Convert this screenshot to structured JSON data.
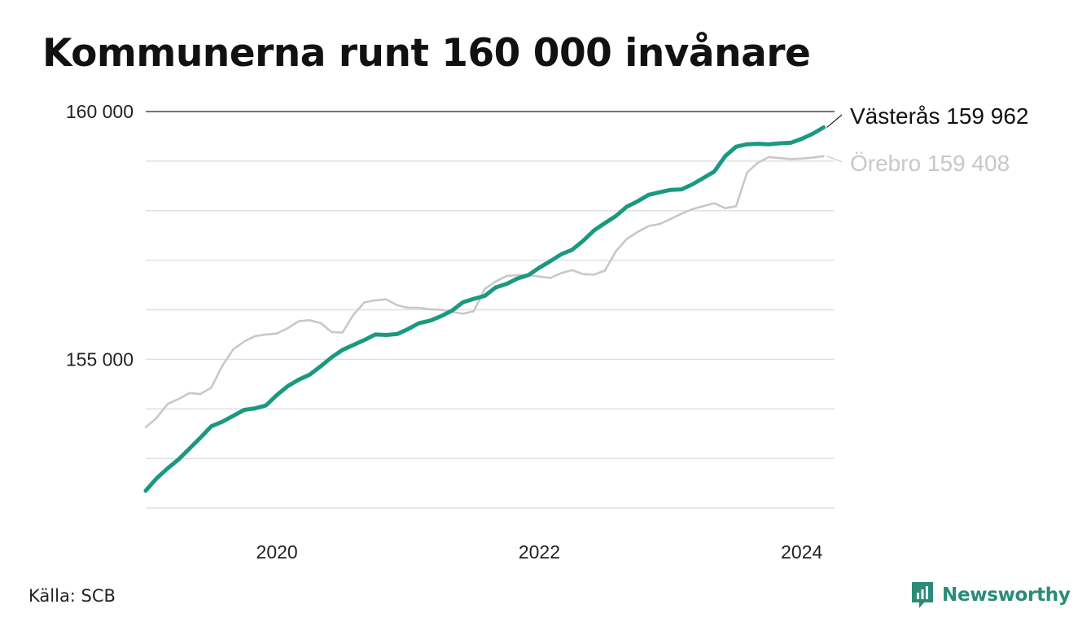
{
  "title": "Kommunerna runt 160 000 invånare",
  "source": "Källa: SCB",
  "brand": {
    "name": "Newsworthy",
    "icon": "newsworthy-logo-icon",
    "color": "#2a8c78"
  },
  "colors": {
    "vasteras": "#1a9980",
    "orebro": "#c8c8c8",
    "grid": "#e0e0e0",
    "top_line": "#222222"
  },
  "chart_data": {
    "type": "line",
    "title": "Kommunerna runt 160 000 invånare",
    "xlabel": "",
    "ylabel": "",
    "x_ticks": [
      2020,
      2022,
      2024
    ],
    "y_ticks": [
      155000,
      160000
    ],
    "y_tick_labels": [
      "155 000",
      "160 000"
    ],
    "xlim": [
      2019.0,
      2024.25
    ],
    "ylim": [
      152000,
      160000
    ],
    "grid": true,
    "x": [
      2019.0,
      2019.0833,
      2019.1667,
      2019.25,
      2019.3333,
      2019.4167,
      2019.5,
      2019.5833,
      2019.6667,
      2019.75,
      2019.8333,
      2019.9167,
      2020.0,
      2020.0833,
      2020.1667,
      2020.25,
      2020.3333,
      2020.4167,
      2020.5,
      2020.5833,
      2020.6667,
      2020.75,
      2020.8333,
      2020.9167,
      2021.0,
      2021.0833,
      2021.1667,
      2021.25,
      2021.3333,
      2021.4167,
      2021.5,
      2021.5833,
      2021.6667,
      2021.75,
      2021.8333,
      2021.9167,
      2022.0,
      2022.0833,
      2022.1667,
      2022.25,
      2022.3333,
      2022.4167,
      2022.5,
      2022.5833,
      2022.6667,
      2022.75,
      2022.8333,
      2022.9167,
      2023.0,
      2023.0833,
      2023.1667,
      2023.25,
      2023.3333,
      2023.4167,
      2023.5,
      2023.5833,
      2023.6667,
      2023.75,
      2023.8333,
      2023.9167,
      2024.0,
      2024.0833,
      2024.1667
    ],
    "series": [
      {
        "name": "Västerås",
        "end_label": "Västerås 159 962",
        "color": "#1a9980",
        "values": [
          152350,
          152600,
          152800,
          152980,
          153200,
          153420,
          153650,
          153740,
          153860,
          153980,
          154010,
          154070,
          154280,
          154460,
          154590,
          154690,
          154860,
          155040,
          155190,
          155290,
          155390,
          155500,
          155490,
          155510,
          155610,
          155730,
          155780,
          155870,
          155980,
          156150,
          156220,
          156280,
          156450,
          156520,
          156630,
          156700,
          156850,
          156980,
          157120,
          157210,
          157390,
          157600,
          157750,
          157890,
          158080,
          158190,
          158320,
          158370,
          158420,
          158430,
          158530,
          158660,
          158790,
          159100,
          159290,
          159340,
          159350,
          159340,
          159360,
          159370,
          159450,
          159550,
          159680
        ]
      },
      {
        "name": "Örebro",
        "end_label": "Örebro 159 408",
        "color": "#c8c8c8",
        "values": [
          153630,
          153820,
          154100,
          154200,
          154320,
          154300,
          154430,
          154870,
          155200,
          155360,
          155470,
          155500,
          155520,
          155630,
          155770,
          155790,
          155730,
          155550,
          155540,
          155900,
          156150,
          156190,
          156210,
          156090,
          156040,
          156040,
          156010,
          156000,
          155960,
          155920,
          155970,
          156420,
          156570,
          156680,
          156700,
          156700,
          156670,
          156640,
          156740,
          156800,
          156720,
          156710,
          156790,
          157180,
          157430,
          157570,
          157690,
          157730,
          157830,
          157940,
          158030,
          158090,
          158150,
          158050,
          158090,
          158770,
          158970,
          159080,
          159060,
          159040,
          159050,
          159070,
          159100
        ]
      }
    ]
  }
}
